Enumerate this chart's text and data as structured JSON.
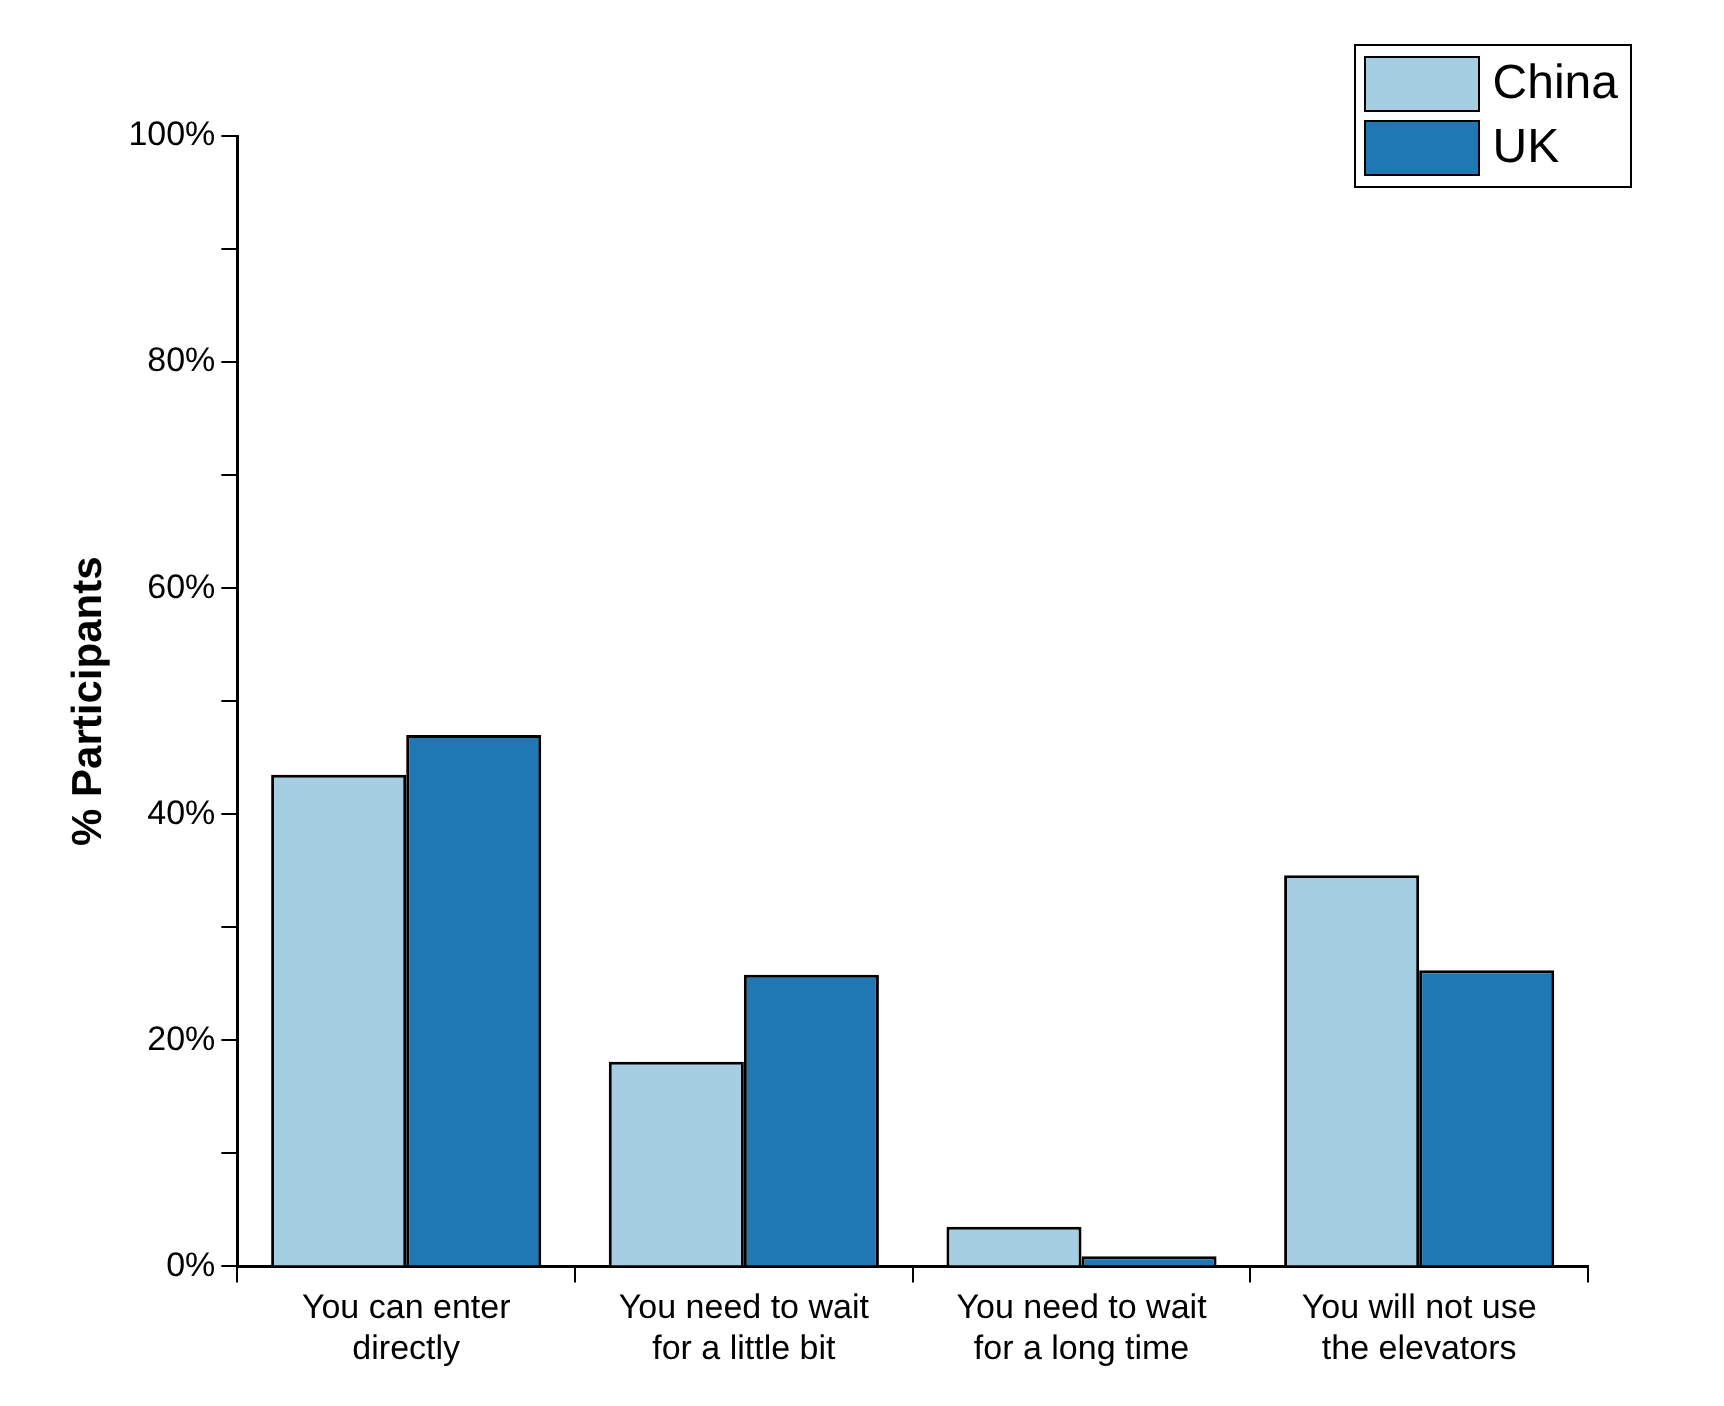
{
  "chart_data": {
    "type": "bar",
    "ylabel": "% Participants",
    "categories": [
      "You can enter directly",
      "You need to wait for a little bit",
      "You need to wait for a long time",
      "You will not use the elevators"
    ],
    "series": [
      {
        "name": "China",
        "color": "#a6cee3",
        "values": [
          43.5,
          18.1,
          3.5,
          34.6
        ]
      },
      {
        "name": "UK",
        "color": "#1f78b4",
        "values": [
          47.0,
          25.8,
          0.9,
          26.2
        ]
      }
    ],
    "ylim": [
      0,
      100
    ],
    "yticks": [
      {
        "value": 0,
        "label": "0%"
      },
      {
        "value": 10,
        "label": null
      },
      {
        "value": 20,
        "label": "20%"
      },
      {
        "value": 30,
        "label": null
      },
      {
        "value": 40,
        "label": "40%"
      },
      {
        "value": 50,
        "label": null
      },
      {
        "value": 60,
        "label": "60%"
      },
      {
        "value": 70,
        "label": null
      },
      {
        "value": 80,
        "label": "80%"
      },
      {
        "value": 90,
        "label": null
      },
      {
        "value": 100,
        "label": "100%"
      }
    ],
    "grid": false,
    "legend": "top right"
  }
}
